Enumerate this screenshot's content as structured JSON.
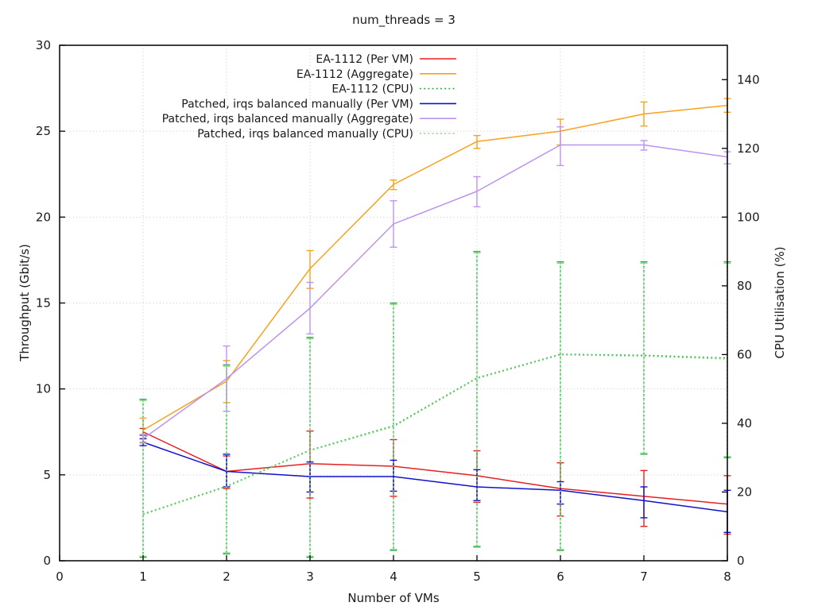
{
  "chart_data": {
    "type": "line",
    "title": "num_threads = 3",
    "xlabel": "Number of VMs",
    "ylabel": "Throughput (Gbit/s)",
    "y2label": "CPU Utilisation (%)",
    "xlim": [
      0,
      8
    ],
    "ylim": [
      0,
      30
    ],
    "y2lim": [
      0,
      150
    ],
    "xticks": [
      0,
      1,
      2,
      3,
      4,
      5,
      6,
      7,
      8
    ],
    "yticks": [
      0,
      5,
      10,
      15,
      20,
      25,
      30
    ],
    "y2ticks": [
      0,
      20,
      40,
      60,
      80,
      100,
      120,
      140
    ],
    "grid": true,
    "legend_position": "top-center-inside",
    "border_color": "#000000",
    "grid_color": "#c8c8c8",
    "x": [
      1,
      2,
      3,
      4,
      5,
      6,
      7,
      8
    ],
    "series": [
      {
        "name": "EA-1112 (Per VM)",
        "color": "#e62020",
        "style": "solid",
        "axis": "y1",
        "y": [
          7.5,
          5.2,
          5.65,
          5.5,
          4.95,
          4.2,
          3.75,
          3.3
        ],
        "err_lo": [
          7.3,
          4.2,
          3.65,
          3.75,
          3.4,
          2.6,
          2.0,
          1.55
        ],
        "err_hi": [
          7.7,
          6.1,
          7.55,
          7.05,
          6.4,
          5.7,
          5.25,
          4.95
        ]
      },
      {
        "name": "EA-1112 (Aggregate)",
        "color": "#f7a11c",
        "style": "solid",
        "axis": "y1",
        "y": [
          7.6,
          10.45,
          17.0,
          21.9,
          24.4,
          25.0,
          26.0,
          26.5
        ],
        "err_lo": [
          6.9,
          9.2,
          15.85,
          21.6,
          24.0,
          24.2,
          25.3,
          26.1
        ],
        "err_hi": [
          8.3,
          11.65,
          18.05,
          22.15,
          24.75,
          25.7,
          26.7,
          26.9
        ]
      },
      {
        "name": "EA-1112 (CPU)",
        "color": "#2fae4a",
        "style": "dotted",
        "axis": "y2",
        "y": [
          13.6,
          21.7,
          32.2,
          39.3,
          53.2,
          60.1,
          59.8,
          59.0
        ],
        "err_lo": [
          1.0,
          2.0,
          1.0,
          3.0,
          4.0,
          3.0,
          31.0,
          30.0
        ],
        "err_hi": [
          47.0,
          57.0,
          65.0,
          75.0,
          90.0,
          87.0,
          87.0,
          87.0
        ]
      },
      {
        "name": "Patched, irqs balanced manually (Per VM)",
        "color": "#1111cc",
        "style": "solid",
        "axis": "y1",
        "y": [
          6.9,
          5.2,
          4.9,
          4.9,
          4.3,
          4.1,
          3.5,
          2.85
        ],
        "err_lo": [
          6.7,
          4.3,
          4.0,
          4.05,
          3.5,
          3.3,
          2.5,
          1.65
        ],
        "err_hi": [
          7.1,
          6.2,
          5.75,
          5.85,
          5.3,
          4.6,
          4.3,
          4.1
        ]
      },
      {
        "name": "Patched, irqs balanced manually (Aggregate)",
        "color": "#bb93f0",
        "style": "solid",
        "axis": "y1",
        "y": [
          7.1,
          10.6,
          14.7,
          19.6,
          21.5,
          24.2,
          24.2,
          23.5
        ],
        "err_lo": [
          6.85,
          8.7,
          13.2,
          18.25,
          20.6,
          23.0,
          23.9,
          23.1
        ],
        "err_hi": [
          7.35,
          12.5,
          16.2,
          20.95,
          22.35,
          25.25,
          24.45,
          23.8
        ]
      },
      {
        "name": "Patched, irqs balanced manually (CPU)",
        "color": "#7fdc7f",
        "style": "dotted",
        "axis": "y2",
        "y": [
          13.4,
          21.5,
          32.0,
          39.0,
          53.0,
          59.9,
          59.5,
          58.7
        ],
        "err_lo": [
          1.3,
          2.3,
          1.3,
          3.3,
          4.3,
          3.3,
          31.3,
          30.3
        ],
        "err_hi": [
          46.6,
          56.6,
          64.6,
          74.6,
          89.6,
          86.6,
          86.6,
          86.6
        ]
      }
    ]
  }
}
